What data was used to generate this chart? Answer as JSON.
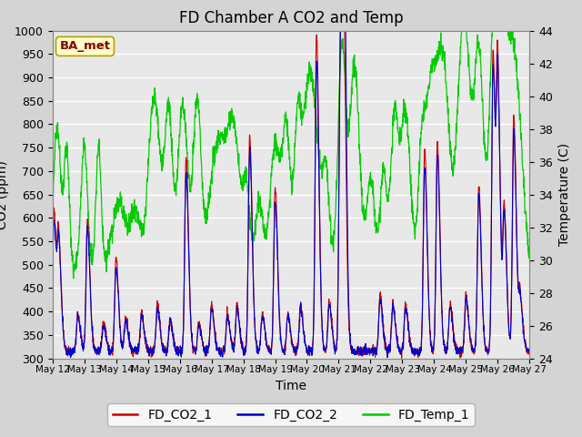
{
  "title": "FD Chamber A CO2 and Temp",
  "xlabel": "Time",
  "ylabel_left": "CO2 (ppm)",
  "ylabel_right": "Temperature (C)",
  "ylim_left": [
    300,
    1000
  ],
  "ylim_right": [
    24,
    44
  ],
  "x_start": 12,
  "x_end": 27,
  "x_ticks": [
    12,
    13,
    14,
    15,
    16,
    17,
    18,
    19,
    20,
    21,
    22,
    23,
    24,
    25,
    26,
    27
  ],
  "x_tick_labels": [
    "May 12",
    "May 13",
    "May 14",
    "May 15",
    "May 16",
    "May 17",
    "May 18",
    "May 19",
    "May 20",
    "May 21",
    "May 22",
    "May 23",
    "May 24",
    "May 25",
    "May 26",
    "May 27"
  ],
  "color_co2_1": "#cc0000",
  "color_co2_2": "#0000cc",
  "color_temp": "#00cc00",
  "legend_labels": [
    "FD_CO2_1",
    "FD_CO2_2",
    "FD_Temp_1"
  ],
  "box_label": "BA_met",
  "fig_bg_color": "#d4d4d4",
  "plot_bg_color": "#e8e8e8",
  "grid_color": "#ffffff",
  "title_fontsize": 12,
  "axis_fontsize": 10,
  "tick_fontsize": 9,
  "legend_fontsize": 10,
  "figwidth": 6.4,
  "figheight": 4.8,
  "dpi": 100
}
